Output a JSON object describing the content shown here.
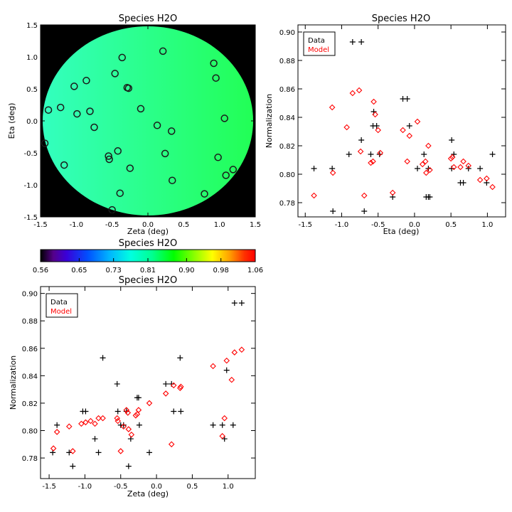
{
  "map_panel": {
    "title": "Species H2O",
    "xlabel": "Zeta (deg)",
    "ylabel": "Eta (deg)",
    "xlim": [
      -1.5,
      1.5
    ],
    "ylim": [
      -1.5,
      1.5
    ],
    "xticks": [
      "-1.5",
      "-1.0",
      "-0.5",
      "0.0",
      "0.5",
      "1.0",
      "1.5"
    ],
    "yticks": [
      "-1.5",
      "-1.0",
      "-0.5",
      "0.0",
      "0.5",
      "1.0",
      "1.5"
    ],
    "background_color": "#000000",
    "field_color_left": "#33ffbf",
    "field_color_right": "#22ff55"
  },
  "colorbar": {
    "title": "Species H2O",
    "tick_labels": [
      "0.56",
      "0.65",
      "0.73",
      "0.81",
      "0.90",
      "0.98",
      "1.06"
    ],
    "range": [
      0.56,
      1.06
    ]
  },
  "legend": {
    "data_label": "Data",
    "model_label": "Model",
    "data_color": "#000000",
    "model_color": "#ff0000"
  },
  "chart_data": [
    {
      "type": "scatter",
      "title": "Species H2O",
      "xlabel": "Zeta (deg)",
      "ylabel": "Eta (deg)",
      "xlim": [
        -1.5,
        1.5
      ],
      "ylim": [
        -1.5,
        1.5
      ],
      "marker": "circle",
      "points": [
        [
          -1.44,
          -0.35
        ],
        [
          -1.39,
          0.17
        ],
        [
          -1.22,
          0.21
        ],
        [
          -1.17,
          -0.69
        ],
        [
          -1.03,
          0.54
        ],
        [
          -0.99,
          0.11
        ],
        [
          -0.86,
          0.63
        ],
        [
          -0.81,
          0.15
        ],
        [
          -0.75,
          -0.1
        ],
        [
          -0.55,
          -0.55
        ],
        [
          -0.54,
          -0.6
        ],
        [
          -0.5,
          -1.39
        ],
        [
          -0.46,
          0.74
        ],
        [
          -0.42,
          -0.47
        ],
        [
          -0.39,
          -1.13
        ],
        [
          -0.36,
          0.99
        ],
        [
          -0.29,
          0.52
        ],
        [
          -0.27,
          0.51
        ],
        [
          -0.25,
          -0.74
        ],
        [
          -0.1,
          0.19
        ],
        [
          0.13,
          -0.07
        ],
        [
          0.21,
          1.09
        ],
        [
          0.24,
          -0.51
        ],
        [
          0.33,
          -0.16
        ],
        [
          0.34,
          -0.93
        ],
        [
          0.79,
          -1.14
        ],
        [
          0.92,
          0.9
        ],
        [
          0.95,
          0.67
        ],
        [
          0.98,
          -0.57
        ],
        [
          1.07,
          0.04
        ],
        [
          1.09,
          -0.85
        ],
        [
          1.19,
          -0.76
        ]
      ]
    },
    {
      "type": "scatter",
      "title": "Species H2O",
      "xlabel": "Eta (deg)",
      "ylabel": "Normalization",
      "xlim": [
        -1.6,
        1.25
      ],
      "ylim": [
        0.77,
        0.905
      ],
      "xticks": [
        "-1.5",
        "-1.0",
        "-0.5",
        "0.0",
        "0.5",
        "1.0"
      ],
      "yticks": [
        "0.78",
        "0.80",
        "0.82",
        "0.84",
        "0.86",
        "0.88",
        "0.90"
      ],
      "series": [
        {
          "name": "Data",
          "marker": "plus",
          "color": "#000000",
          "points": [
            [
              -1.38,
              0.804
            ],
            [
              -1.13,
              0.804
            ],
            [
              -1.12,
              0.774
            ],
            [
              -0.9,
              0.814
            ],
            [
              -0.85,
              0.893
            ],
            [
              -0.73,
              0.893
            ],
            [
              -0.73,
              0.824
            ],
            [
              -0.69,
              0.774
            ],
            [
              -0.6,
              0.814
            ],
            [
              -0.56,
              0.844
            ],
            [
              -0.57,
              0.834
            ],
            [
              -0.52,
              0.834
            ],
            [
              -0.48,
              0.814
            ],
            [
              -0.3,
              0.784
            ],
            [
              -0.16,
              0.853
            ],
            [
              -0.1,
              0.853
            ],
            [
              -0.07,
              0.834
            ],
            [
              0.04,
              0.804
            ],
            [
              0.13,
              0.814
            ],
            [
              0.16,
              0.784
            ],
            [
              0.19,
              0.784
            ],
            [
              0.21,
              0.784
            ],
            [
              0.19,
              0.804
            ],
            [
              0.51,
              0.824
            ],
            [
              0.51,
              0.804
            ],
            [
              0.54,
              0.814
            ],
            [
              0.63,
              0.794
            ],
            [
              0.67,
              0.794
            ],
            [
              0.74,
              0.804
            ],
            [
              0.9,
              0.804
            ],
            [
              0.99,
              0.794
            ],
            [
              1.07,
              0.814
            ]
          ]
        },
        {
          "name": "Model",
          "marker": "diamond",
          "color": "#ff0000",
          "points": [
            [
              -1.38,
              0.785
            ],
            [
              -1.13,
              0.847
            ],
            [
              -1.12,
              0.801
            ],
            [
              -0.93,
              0.833
            ],
            [
              -0.85,
              0.857
            ],
            [
              -0.76,
              0.859
            ],
            [
              -0.74,
              0.816
            ],
            [
              -0.69,
              0.785
            ],
            [
              -0.6,
              0.808
            ],
            [
              -0.57,
              0.809
            ],
            [
              -0.56,
              0.851
            ],
            [
              -0.54,
              0.842
            ],
            [
              -0.5,
              0.831
            ],
            [
              -0.47,
              0.815
            ],
            [
              -0.3,
              0.787
            ],
            [
              -0.16,
              0.831
            ],
            [
              -0.1,
              0.809
            ],
            [
              -0.07,
              0.827
            ],
            [
              0.04,
              0.837
            ],
            [
              0.11,
              0.807
            ],
            [
              0.15,
              0.809
            ],
            [
              0.16,
              0.801
            ],
            [
              0.19,
              0.82
            ],
            [
              0.21,
              0.803
            ],
            [
              0.5,
              0.811
            ],
            [
              0.52,
              0.812
            ],
            [
              0.54,
              0.805
            ],
            [
              0.63,
              0.805
            ],
            [
              0.67,
              0.809
            ],
            [
              0.74,
              0.806
            ],
            [
              0.9,
              0.796
            ],
            [
              0.99,
              0.797
            ],
            [
              1.07,
              0.791
            ]
          ]
        }
      ]
    },
    {
      "type": "scatter",
      "title": "Species H2O",
      "xlabel": "Zeta (deg)",
      "ylabel": "Normalization",
      "xlim": [
        -1.62,
        1.38
      ],
      "ylim": [
        0.765,
        0.905
      ],
      "xticks": [
        "-1.5",
        "-1.0",
        "-0.5",
        "0.0",
        "0.5",
        "1.0"
      ],
      "yticks": [
        "0.78",
        "0.80",
        "0.82",
        "0.84",
        "0.86",
        "0.88",
        "0.90"
      ],
      "series": [
        {
          "name": "Data",
          "marker": "plus",
          "color": "#000000",
          "points": [
            [
              -1.45,
              0.784
            ],
            [
              -1.39,
              0.804
            ],
            [
              -1.22,
              0.784
            ],
            [
              -1.17,
              0.774
            ],
            [
              -1.03,
              0.814
            ],
            [
              -0.99,
              0.814
            ],
            [
              -0.86,
              0.794
            ],
            [
              -0.81,
              0.784
            ],
            [
              -0.75,
              0.853
            ],
            [
              -0.55,
              0.834
            ],
            [
              -0.54,
              0.814
            ],
            [
              -0.5,
              0.804
            ],
            [
              -0.46,
              0.804
            ],
            [
              -0.42,
              0.814
            ],
            [
              -0.39,
              0.774
            ],
            [
              -0.36,
              0.794
            ],
            [
              -0.27,
              0.824
            ],
            [
              -0.25,
              0.824
            ],
            [
              -0.24,
              0.804
            ],
            [
              -0.1,
              0.784
            ],
            [
              0.13,
              0.834
            ],
            [
              0.21,
              0.834
            ],
            [
              0.24,
              0.814
            ],
            [
              0.33,
              0.853
            ],
            [
              0.34,
              0.814
            ],
            [
              0.79,
              0.804
            ],
            [
              0.92,
              0.804
            ],
            [
              0.95,
              0.794
            ],
            [
              0.98,
              0.844
            ],
            [
              1.07,
              0.804
            ],
            [
              1.09,
              0.893
            ],
            [
              1.19,
              0.893
            ]
          ]
        },
        {
          "name": "Model",
          "marker": "diamond",
          "color": "#ff0000",
          "points": [
            [
              -1.44,
              0.787
            ],
            [
              -1.39,
              0.799
            ],
            [
              -1.22,
              0.803
            ],
            [
              -1.17,
              0.785
            ],
            [
              -1.05,
              0.805
            ],
            [
              -0.99,
              0.806
            ],
            [
              -0.92,
              0.807
            ],
            [
              -0.86,
              0.805
            ],
            [
              -0.81,
              0.809
            ],
            [
              -0.75,
              0.809
            ],
            [
              -0.55,
              0.809
            ],
            [
              -0.54,
              0.807
            ],
            [
              -0.5,
              0.785
            ],
            [
              -0.46,
              0.803
            ],
            [
              -0.42,
              0.815
            ],
            [
              -0.4,
              0.813
            ],
            [
              -0.39,
              0.801
            ],
            [
              -0.35,
              0.797
            ],
            [
              -0.29,
              0.811
            ],
            [
              -0.27,
              0.812
            ],
            [
              -0.25,
              0.815
            ],
            [
              -0.1,
              0.82
            ],
            [
              0.13,
              0.827
            ],
            [
              0.21,
              0.79
            ],
            [
              0.24,
              0.833
            ],
            [
              0.33,
              0.831
            ],
            [
              0.34,
              0.832
            ],
            [
              0.79,
              0.847
            ],
            [
              0.92,
              0.796
            ],
            [
              0.95,
              0.809
            ],
            [
              0.98,
              0.851
            ],
            [
              1.05,
              0.837
            ],
            [
              1.09,
              0.857
            ],
            [
              1.19,
              0.859
            ]
          ]
        }
      ]
    }
  ]
}
